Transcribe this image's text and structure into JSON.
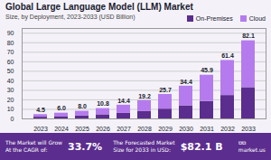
{
  "chart_data": {
    "type": "bar",
    "title": "Global Large Language Model (LLM) Market",
    "subtitle": "Size, by Deployment, 2023-2033 (USD Billion)",
    "categories": [
      "2023",
      "2024",
      "2025",
      "2026",
      "2027",
      "2028",
      "2029",
      "2030",
      "2031",
      "2032",
      "2033"
    ],
    "series": [
      {
        "name": "On-Premises",
        "color": "#5b2d8e",
        "values": [
          1.8,
          2.4,
          3.2,
          4.32,
          5.76,
          7.68,
          10.28,
          13.76,
          18.36,
          24.56,
          32.84
        ]
      },
      {
        "name": "Cloud",
        "color": "#b57bee",
        "values": [
          2.7,
          3.6,
          4.8,
          6.48,
          8.64,
          11.52,
          15.42,
          20.64,
          27.54,
          36.84,
          49.26
        ]
      }
    ],
    "stacked": true,
    "totals": [
      4.5,
      6.0,
      8.0,
      10.8,
      14.4,
      19.2,
      25.7,
      34.4,
      45.9,
      61.4,
      82.1
    ],
    "total_labels": [
      "4.5",
      "6.0",
      "8.0",
      "10.8",
      "14.4",
      "19.2",
      "25.7",
      "34.4",
      "45.9",
      "61.4",
      "82.1"
    ],
    "ylim": [
      0,
      95
    ],
    "yticks": [
      0,
      10,
      20,
      30,
      40,
      50,
      60,
      70,
      80,
      90
    ],
    "grid": true,
    "legend": "upper right",
    "annotations": [
      "The Market will Grow\nAt the CAGR of:",
      "33.7%",
      "The Forecasted Market\nSize for 2033 in USD:",
      "$82.1 B",
      "⧉⧉",
      "market.us"
    ]
  }
}
